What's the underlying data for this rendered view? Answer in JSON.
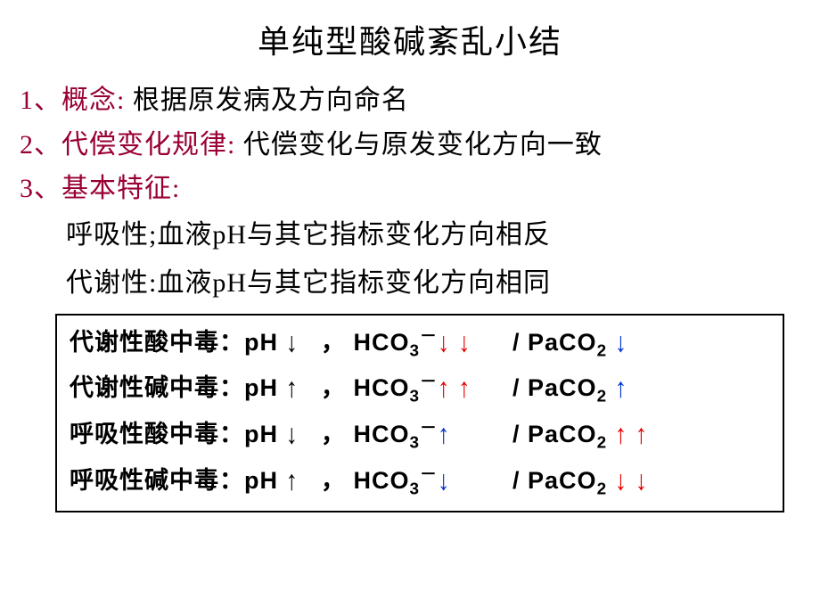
{
  "colors": {
    "text": "#000000",
    "accent": "#990033",
    "red": "#e60000",
    "blue": "#0033cc"
  },
  "title": "单纯型酸碱紊乱小结",
  "items": [
    {
      "num": "1、",
      "label": "概念:",
      "label_color": "#990033",
      "content": " 根据原发病及方向命名",
      "content_color": "#000000"
    },
    {
      "num": "2、",
      "label": "代偿变化规律:",
      "label_color": "#990033",
      "content": " 代偿变化与原发变化方向一致",
      "content_color": "#000000"
    },
    {
      "num": "3、",
      "label": "基本特征:",
      "label_color": "#990033",
      "content": "",
      "content_color": "#000000"
    }
  ],
  "subs": [
    "呼吸性;血液pH与其它指标变化方向相反",
    "代谢性:血液pH与其它指标变化方向相同"
  ],
  "arrows": {
    "up": "↑",
    "down": "↓"
  },
  "box": {
    "rows": [
      {
        "name": "代谢性酸中毒：",
        "ph": {
          "label": "pH",
          "dir": "down",
          "color": "#000000"
        },
        "hco3": {
          "dir": "down",
          "color": "#e60000",
          "count": 2
        },
        "paco2": {
          "dir": "down",
          "color": "#0033cc",
          "count": 1
        }
      },
      {
        "name": "代谢性碱中毒：",
        "ph": {
          "label": "pH",
          "dir": "up",
          "color": "#000000"
        },
        "hco3": {
          "dir": "up",
          "color": "#e60000",
          "count": 2
        },
        "paco2": {
          "dir": "up",
          "color": "#0033cc",
          "count": 1
        }
      },
      {
        "name": "呼吸性酸中毒：",
        "ph": {
          "label": "pH",
          "dir": "down",
          "color": "#000000"
        },
        "hco3": {
          "dir": "up",
          "color": "#0033cc",
          "count": 1
        },
        "paco2": {
          "dir": "up",
          "color": "#e60000",
          "count": 2
        }
      },
      {
        "name": "呼吸性碱中毒：",
        "ph": {
          "label": "pH",
          "dir": "up",
          "color": "#000000"
        },
        "hco3": {
          "dir": "down",
          "color": "#0033cc",
          "count": 1
        },
        "paco2": {
          "dir": "down",
          "color": "#e60000",
          "count": 2
        }
      }
    ]
  }
}
